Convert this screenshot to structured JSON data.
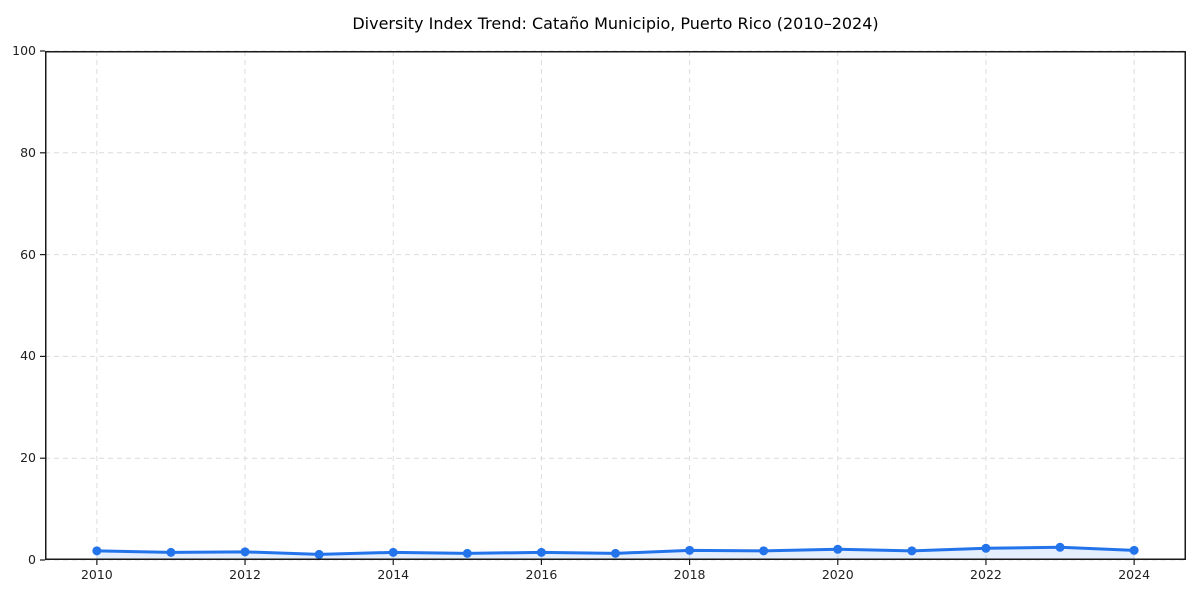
{
  "chart_data": {
    "type": "line",
    "title": "Diversity Index Trend: Cataño Municipio, Puerto Rico (2010–2024)",
    "xlabel": "",
    "ylabel": "",
    "x": [
      2010,
      2011,
      2012,
      2013,
      2014,
      2015,
      2016,
      2017,
      2018,
      2019,
      2020,
      2021,
      2022,
      2023,
      2024
    ],
    "series": [
      {
        "name": "Diversity Index",
        "values": [
          1.8,
          1.5,
          1.6,
          1.1,
          1.5,
          1.3,
          1.5,
          1.3,
          1.9,
          1.8,
          2.1,
          1.8,
          2.3,
          2.5,
          1.9
        ]
      }
    ],
    "ylim": [
      0,
      100
    ],
    "xlim": [
      2009.3,
      2024.7
    ],
    "yticks": [
      0,
      20,
      40,
      60,
      80,
      100
    ],
    "ytick_labels": [
      "0",
      "20",
      "40",
      "60",
      "80",
      "100"
    ],
    "xticks": [
      2010,
      2012,
      2014,
      2016,
      2018,
      2020,
      2022,
      2024
    ],
    "xtick_labels": [
      "2010",
      "2012",
      "2014",
      "2016",
      "2018",
      "2020",
      "2022",
      "2024"
    ],
    "grid": true,
    "grid_style": "dashed",
    "legend": "none",
    "marker": "circle",
    "colors": {
      "line": "#2373eb",
      "fill": "#e9f1fd",
      "fill_opacity": 0.12,
      "grid": "#dcdcdc",
      "spine": "#1a1a1a",
      "tick_label": "#1f1f1f",
      "title": "#000000",
      "background": "#ffffff"
    }
  }
}
